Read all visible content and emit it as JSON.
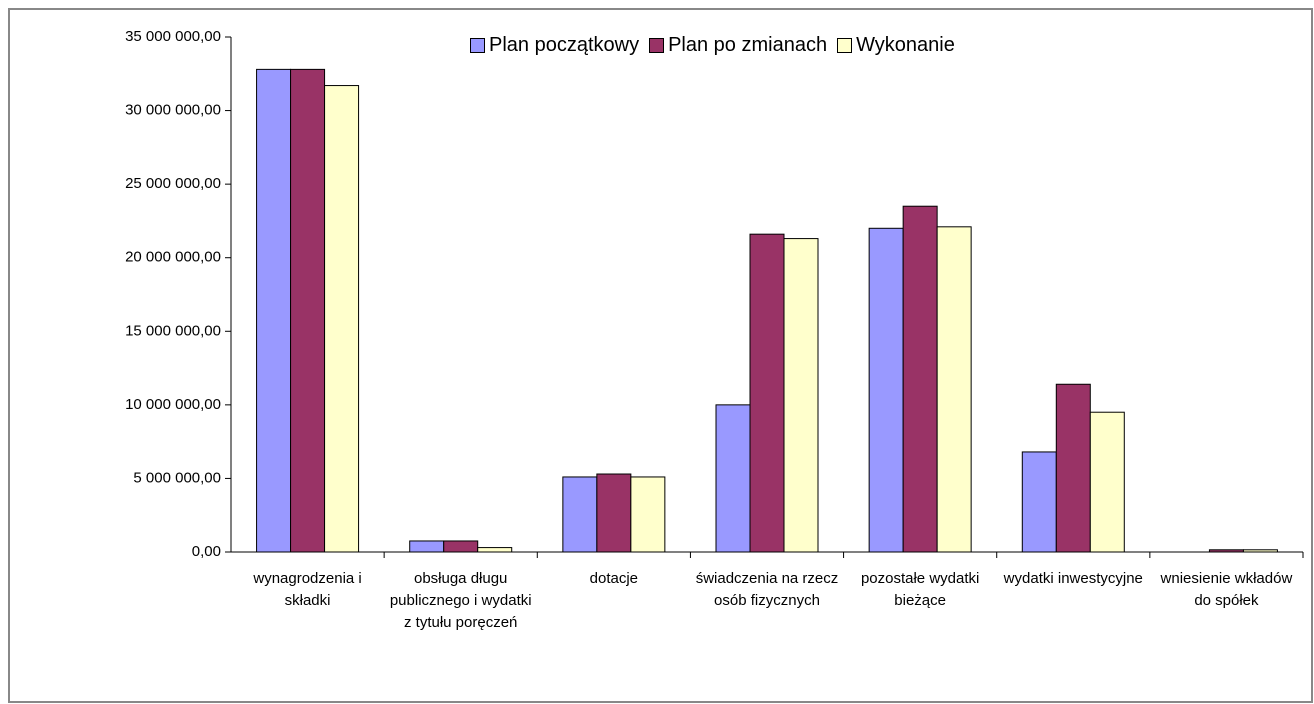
{
  "chart_data": {
    "type": "bar",
    "categories": [
      "wynagrodzenia i składki",
      "obsługa długu publicznego i wydatki z tytułu poręczeń",
      "dotacje",
      "świadczenia na rzecz osób fizycznych",
      "pozostałe wydatki bieżące",
      "wydatki inwestycyjne",
      "wniesienie wkładów do spółek"
    ],
    "series": [
      {
        "name": "Plan początkowy",
        "color": "#9999ff",
        "values": [
          32800000,
          750000,
          5100000,
          10000000,
          22000000,
          6800000,
          0
        ]
      },
      {
        "name": "Plan po zmianach",
        "color": "#993366",
        "values": [
          32800000,
          750000,
          5300000,
          21600000,
          23500000,
          11400000,
          150000
        ]
      },
      {
        "name": "Wykonanie",
        "color": "#ffffcc",
        "values": [
          31700000,
          300000,
          5100000,
          21300000,
          22100000,
          9500000,
          150000
        ]
      }
    ],
    "ylim": [
      0,
      35000000
    ],
    "yticks": [
      {
        "value": 0,
        "label": "0,00"
      },
      {
        "value": 5000000,
        "label": "5 000 000,00"
      },
      {
        "value": 10000000,
        "label": "10 000 000,00"
      },
      {
        "value": 15000000,
        "label": "15 000 000,00"
      },
      {
        "value": 20000000,
        "label": "20 000 000,00"
      },
      {
        "value": 25000000,
        "label": "25 000 000,00"
      },
      {
        "value": 30000000,
        "label": "30 000 000,00"
      },
      {
        "value": 35000000,
        "label": "35 000 000,00"
      }
    ],
    "grid": false,
    "legend": "top"
  }
}
